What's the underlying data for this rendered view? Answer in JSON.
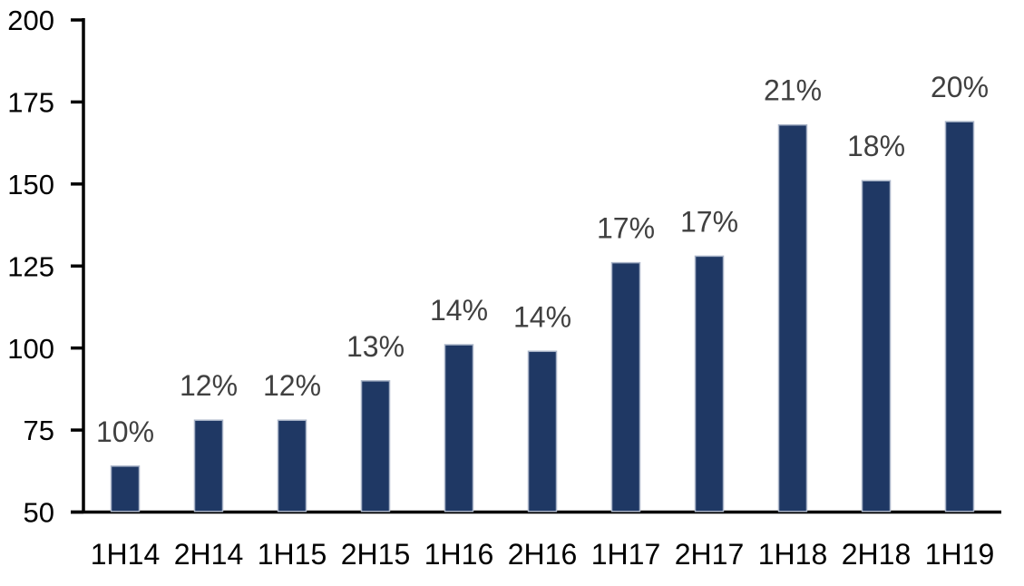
{
  "chart_data": {
    "type": "bar",
    "title": "",
    "xlabel": "",
    "ylabel": "",
    "categories": [
      "1H14",
      "2H14",
      "1H15",
      "2H15",
      "1H16",
      "2H16",
      "1H17",
      "2H17",
      "1H18",
      "2H18",
      "1H19"
    ],
    "values": [
      64,
      78,
      78,
      90,
      101,
      99,
      126,
      128,
      168,
      151,
      169
    ],
    "bar_labels": [
      "10%",
      "12%",
      "12%",
      "13%",
      "14%",
      "14%",
      "17%",
      "17%",
      "21%",
      "18%",
      "20%"
    ],
    "ylim": [
      50,
      200
    ],
    "y_ticks": [
      50,
      75,
      100,
      125,
      150,
      175,
      200
    ],
    "grid": false,
    "legend": "none",
    "colors": {
      "bar_fill": "#1F3864",
      "bar_border": "#A9B4C8",
      "data_label": "#404040",
      "axis_line": "#000000",
      "tick_label": "#000000",
      "background": "#FFFFFF"
    }
  }
}
